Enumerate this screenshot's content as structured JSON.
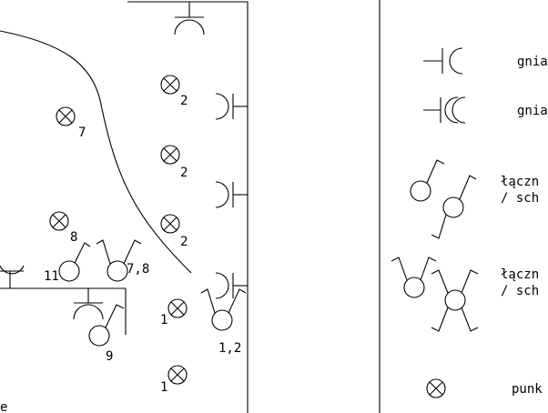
{
  "plan_labels": {
    "light_7": "7",
    "light_8": "8",
    "light_2a": "2",
    "light_2b": "2",
    "light_2c": "2",
    "light_1a": "1",
    "light_1b": "1",
    "switch_11": "11",
    "switch_78": "7,8",
    "switch_9": "9",
    "switch_12": "1,2",
    "corner_text": "e"
  },
  "legend": {
    "items": [
      {
        "symbol": "socket-icon",
        "label": "gniaz"
      },
      {
        "symbol": "double-socket-icon",
        "label": "gniaz"
      },
      {
        "symbol": "switch-icon",
        "label_line1": "łączn",
        "label_line2": "/ sch"
      },
      {
        "symbol": "staircase-switch-icon",
        "label_line1": "łączn",
        "label_line2": "/ sch"
      },
      {
        "symbol": "light-point-icon",
        "label": "punk"
      }
    ]
  }
}
